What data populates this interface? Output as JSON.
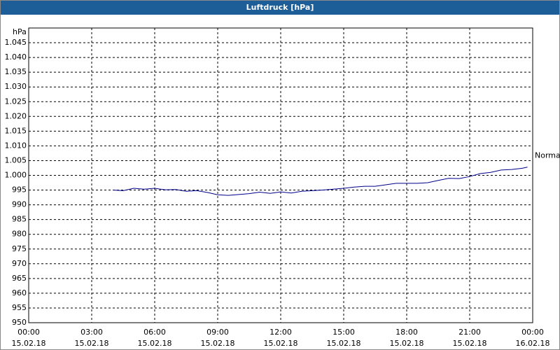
{
  "chart_data": {
    "type": "line",
    "title": "Luftdruck [hPa]",
    "y_label": "hPa",
    "x": [
      "2018-02-15T04:00",
      "2018-02-15T04:30",
      "2018-02-15T05:00",
      "2018-02-15T05:30",
      "2018-02-15T06:00",
      "2018-02-15T06:30",
      "2018-02-15T07:00",
      "2018-02-15T07:30",
      "2018-02-15T08:00",
      "2018-02-15T08:30",
      "2018-02-15T09:00",
      "2018-02-15T09:30",
      "2018-02-15T10:00",
      "2018-02-15T10:30",
      "2018-02-15T11:00",
      "2018-02-15T11:30",
      "2018-02-15T12:00",
      "2018-02-15T12:30",
      "2018-02-15T13:00",
      "2018-02-15T13:30",
      "2018-02-15T14:00",
      "2018-02-15T14:30",
      "2018-02-15T15:00",
      "2018-02-15T15:30",
      "2018-02-15T16:00",
      "2018-02-15T16:30",
      "2018-02-15T17:00",
      "2018-02-15T17:30",
      "2018-02-15T18:00",
      "2018-02-15T18:30",
      "2018-02-15T19:00",
      "2018-02-15T19:30",
      "2018-02-15T20:00",
      "2018-02-15T20:30",
      "2018-02-15T21:00",
      "2018-02-15T21:30",
      "2018-02-15T22:00",
      "2018-02-15T22:30",
      "2018-02-15T23:00",
      "2018-02-15T23:30",
      "2018-02-15T23:45"
    ],
    "series": [
      {
        "name": "Normal",
        "color": "#00008b",
        "values": [
          995,
          994.8,
          995.6,
          995.3,
          995.6,
          995.1,
          995.2,
          994.6,
          994.8,
          994.2,
          993.4,
          993.2,
          993.5,
          993.8,
          994.3,
          993.9,
          994.4,
          994.0,
          994.6,
          994.8,
          995.0,
          995.3,
          995.6,
          996.0,
          996.3,
          996.3,
          996.8,
          997.3,
          997.3,
          997.3,
          997.5,
          998.3,
          999.0,
          998.9,
          999.6,
          1000.6,
          1001.0,
          1001.8,
          1002.0,
          1002.4,
          1002.8
        ]
      }
    ],
    "xlim": [
      "2018-02-15T00:00",
      "2018-02-16T00:00"
    ],
    "xticks": [
      {
        "value": "2018-02-15T00:00",
        "label": "00:00 15.02.18"
      },
      {
        "value": "2018-02-15T03:00",
        "label": "03:00 15.02.18"
      },
      {
        "value": "2018-02-15T06:00",
        "label": "06:00 15.02.18"
      },
      {
        "value": "2018-02-15T09:00",
        "label": "09:00 15.02.18"
      },
      {
        "value": "2018-02-15T12:00",
        "label": "12:00 15.02.18"
      },
      {
        "value": "2018-02-15T15:00",
        "label": "15:00 15.02.18"
      },
      {
        "value": "2018-02-15T18:00",
        "label": "18:00 15.02.18"
      },
      {
        "value": "2018-02-15T21:00",
        "label": "21:00 15.02.18"
      },
      {
        "value": "2018-02-16T00:00",
        "label": "00:00 16.02.18"
      }
    ],
    "ylim": [
      950,
      1050
    ],
    "yticks": [
      950,
      955,
      960,
      965,
      970,
      975,
      980,
      985,
      990,
      995,
      {
        "value": 1000,
        "label": "1.000"
      },
      {
        "value": 1005,
        "label": "1.005"
      },
      {
        "value": 1010,
        "label": "1.010"
      },
      {
        "value": 1015,
        "label": "1.015"
      },
      {
        "value": 1020,
        "label": "1.020"
      },
      {
        "value": 1025,
        "label": "1.025"
      },
      {
        "value": 1030,
        "label": "1.030"
      },
      {
        "value": 1035,
        "label": "1.035"
      },
      {
        "value": 1040,
        "label": "1.040"
      },
      {
        "value": 1045,
        "label": "1.045"
      }
    ],
    "grid": true
  }
}
